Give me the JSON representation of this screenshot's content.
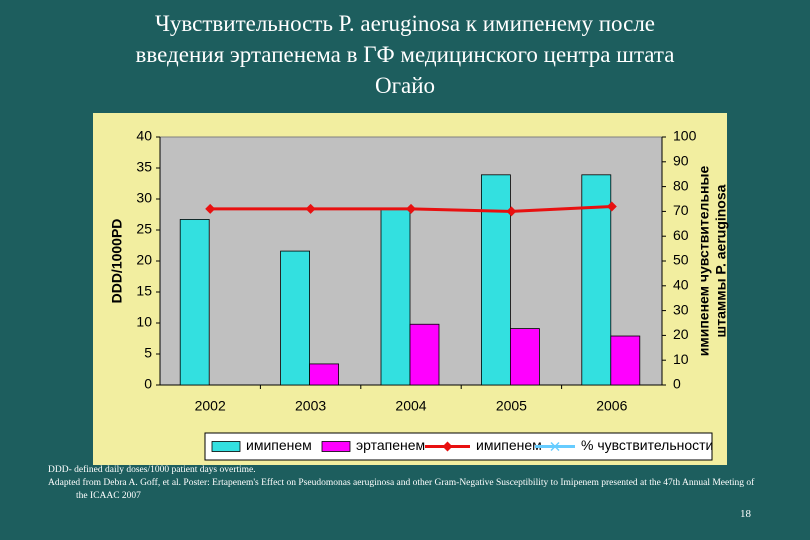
{
  "chart_data": {
    "type": "bar",
    "title": [
      "Чувствительность P. aeruginosa  к имипенему после",
      "введения эртапенема в ГФ медицинского центра штата",
      "Огайо"
    ],
    "categories": [
      "2002",
      "2003",
      "2004",
      "2005",
      "2006"
    ],
    "series": [
      {
        "name": "имипенем",
        "type": "bar",
        "color": "#33e0e0",
        "values": [
          26.7,
          21.6,
          28.4,
          33.9,
          33.9
        ]
      },
      {
        "name": "эртапенем",
        "type": "bar",
        "color": "#ff00ff",
        "values": [
          0,
          3.4,
          9.8,
          9.1,
          7.9
        ]
      },
      {
        "name": "имипенем",
        "type": "line",
        "axis": "y2",
        "color": "#e81010",
        "marker": "diamond",
        "values": [
          71,
          71,
          71,
          70,
          72
        ]
      },
      {
        "name": "% чувствительности",
        "type": "line",
        "axis": "y2",
        "color": "#66ccff",
        "marker": "x",
        "values": [
          null,
          null,
          null,
          null,
          null
        ]
      }
    ],
    "ylabel": "DDD/1000PD",
    "y2label": [
      "имипенем чувствительные",
      "штаммы P. aeruginosa"
    ],
    "ylim": [
      0,
      40
    ],
    "yticks": [
      0,
      5,
      10,
      15,
      20,
      25,
      30,
      35,
      40
    ],
    "y2lim": [
      0,
      100
    ],
    "y2ticks": [
      0,
      10,
      20,
      30,
      40,
      50,
      60,
      70,
      80,
      90,
      100
    ],
    "legend": "bottom",
    "notes": [
      "DDD- defined daily doses/1000 patient days overtime.",
      "Adapted from Debra A. Goff, et al. Poster: Ertapenem's Effect on Pseudomonas aeruginosa and other  Gram-Negative Susceptibility to Imipenem presented at the 47th Annual Meeting of the ICAAC 2007"
    ],
    "page_number": "18"
  }
}
